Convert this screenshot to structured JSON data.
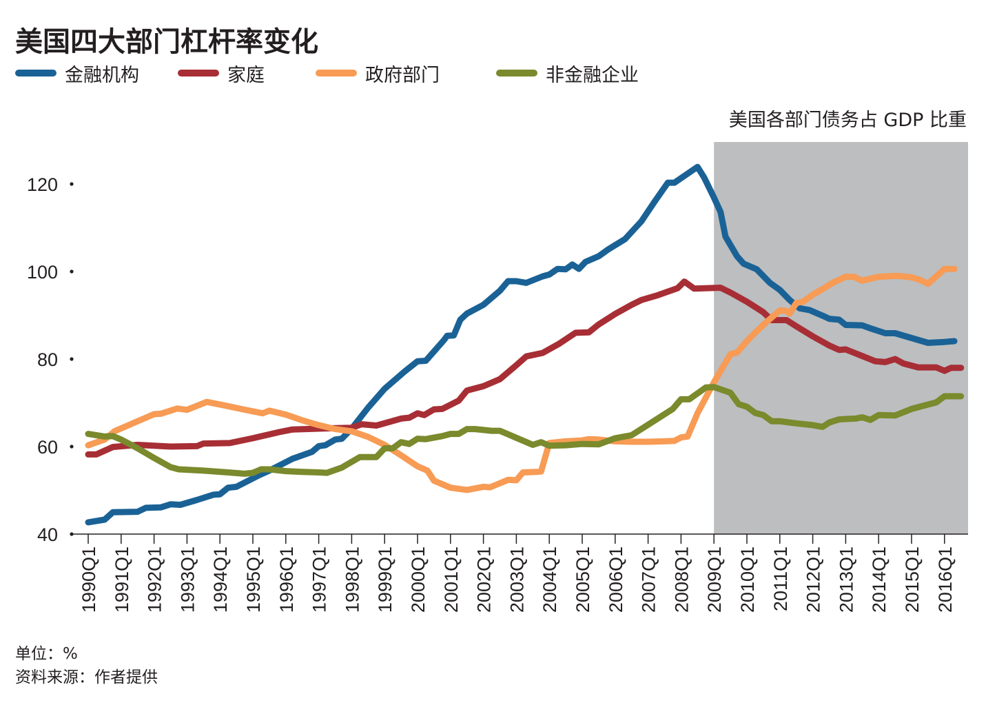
{
  "title": "美国四大部门杠杆率变化",
  "subtitle": "美国各部门债务占 GDP 比重",
  "unit_note": "单位：%",
  "source_note": "资料来源：作者提供",
  "colors": {
    "financial": "#1a6296",
    "household": "#a82e35",
    "government": "#f79b55",
    "nonfinancial": "#7a8a2c",
    "shade": "#bcbec0",
    "axis": "#231f20"
  },
  "chart_data": {
    "type": "line",
    "title": "美国四大部门杠杆率变化",
    "subtitle": "美国各部门债务占 GDP 比重",
    "xlabel": "",
    "ylabel": "单位：%",
    "x_range": [
      1990.0,
      2017.0
    ],
    "ylim": [
      40,
      130
    ],
    "yticks": [
      40,
      60,
      80,
      100,
      120
    ],
    "categories": [
      "1990Q1",
      "1991Q1",
      "1992Q1",
      "1993Q1",
      "1994Q1",
      "1995Q1",
      "1996Q1",
      "1997Q1",
      "1998Q1",
      "1999Q1",
      "2000Q1",
      "2001Q1",
      "2002Q1",
      "2003Q1",
      "2004Q1",
      "2005Q1",
      "2006Q1",
      "2007Q1",
      "2008Q1",
      "2009Q1",
      "2010Q1",
      "2011Q1",
      "2012Q1",
      "2013Q1",
      "2014Q1",
      "2015Q1",
      "2016Q1"
    ],
    "shaded_region": {
      "from": 2009.0,
      "to": 2017.0
    },
    "series": [
      {
        "name": "金融机构",
        "key": "financial",
        "points": [
          [
            1990.0,
            42.7
          ],
          [
            1990.5,
            43.3
          ],
          [
            1990.75,
            45.0
          ],
          [
            1991.5,
            45.1
          ],
          [
            1991.75,
            46.0
          ],
          [
            1992.2,
            46.1
          ],
          [
            1992.5,
            46.8
          ],
          [
            1992.8,
            46.7
          ],
          [
            1993.3,
            47.8
          ],
          [
            1993.8,
            49.0
          ],
          [
            1994.0,
            49.1
          ],
          [
            1994.25,
            50.6
          ],
          [
            1994.5,
            50.8
          ],
          [
            1995.2,
            53.5
          ],
          [
            1995.5,
            54.5
          ],
          [
            1996.2,
            57.2
          ],
          [
            1996.8,
            58.8
          ],
          [
            1997.0,
            60.1
          ],
          [
            1997.2,
            60.3
          ],
          [
            1997.5,
            61.6
          ],
          [
            1997.7,
            61.8
          ],
          [
            1998.0,
            64.1
          ],
          [
            1998.5,
            68.9
          ],
          [
            1999.0,
            73.2
          ],
          [
            1999.6,
            77.1
          ],
          [
            2000.0,
            79.5
          ],
          [
            2000.25,
            79.6
          ],
          [
            2000.8,
            84.3
          ],
          [
            2000.9,
            85.3
          ],
          [
            2001.1,
            85.4
          ],
          [
            2001.3,
            89.0
          ],
          [
            2001.5,
            90.4
          ],
          [
            2002.0,
            92.4
          ],
          [
            2002.5,
            95.6
          ],
          [
            2002.75,
            97.8
          ],
          [
            2003.0,
            97.8
          ],
          [
            2003.3,
            97.4
          ],
          [
            2003.8,
            98.9
          ],
          [
            2004.0,
            99.3
          ],
          [
            2004.25,
            100.6
          ],
          [
            2004.5,
            100.5
          ],
          [
            2004.7,
            101.6
          ],
          [
            2004.9,
            100.6
          ],
          [
            2005.1,
            102.2
          ],
          [
            2005.5,
            103.5
          ],
          [
            2005.8,
            105.1
          ],
          [
            2006.3,
            107.4
          ],
          [
            2006.8,
            111.5
          ],
          [
            2007.2,
            116.0
          ],
          [
            2007.6,
            120.3
          ],
          [
            2007.8,
            120.3
          ],
          [
            2008.5,
            123.9
          ],
          [
            2008.7,
            121.5
          ],
          [
            2009.0,
            116.9
          ],
          [
            2009.2,
            113.6
          ],
          [
            2009.35,
            108.0
          ],
          [
            2009.7,
            103.5
          ],
          [
            2009.9,
            101.8
          ],
          [
            2010.3,
            100.5
          ],
          [
            2010.7,
            97.4
          ],
          [
            2011.0,
            95.8
          ],
          [
            2011.3,
            93.5
          ],
          [
            2011.6,
            91.6
          ],
          [
            2011.9,
            91.2
          ],
          [
            2012.3,
            89.9
          ],
          [
            2012.5,
            89.2
          ],
          [
            2012.8,
            89.0
          ],
          [
            2013.0,
            87.8
          ],
          [
            2013.5,
            87.7
          ],
          [
            2013.8,
            86.9
          ],
          [
            2014.2,
            85.9
          ],
          [
            2014.5,
            85.9
          ],
          [
            2015.0,
            84.8
          ],
          [
            2015.5,
            83.7
          ],
          [
            2016.0,
            83.9
          ],
          [
            2016.3,
            84.1
          ]
        ]
      },
      {
        "name": "家庭",
        "key": "household",
        "points": [
          [
            1990.0,
            58.2
          ],
          [
            1990.25,
            58.2
          ],
          [
            1990.75,
            59.9
          ],
          [
            1991.5,
            60.4
          ],
          [
            1992.5,
            60.0
          ],
          [
            1993.3,
            60.1
          ],
          [
            1993.5,
            60.7
          ],
          [
            1994.3,
            60.8
          ],
          [
            1995.0,
            61.9
          ],
          [
            1995.8,
            63.3
          ],
          [
            1996.2,
            63.9
          ],
          [
            1997.0,
            64.1
          ],
          [
            1997.5,
            64.2
          ],
          [
            1998.0,
            64.3
          ],
          [
            1998.3,
            65.1
          ],
          [
            1998.75,
            64.8
          ],
          [
            1999.5,
            66.4
          ],
          [
            1999.75,
            66.6
          ],
          [
            2000.0,
            67.6
          ],
          [
            2000.2,
            67.2
          ],
          [
            2000.5,
            68.5
          ],
          [
            2000.75,
            68.6
          ],
          [
            2001.25,
            70.5
          ],
          [
            2001.5,
            72.8
          ],
          [
            2002.0,
            73.8
          ],
          [
            2002.5,
            75.4
          ],
          [
            2003.0,
            78.6
          ],
          [
            2003.3,
            80.6
          ],
          [
            2003.8,
            81.4
          ],
          [
            2004.3,
            83.5
          ],
          [
            2004.8,
            86.0
          ],
          [
            2005.2,
            86.1
          ],
          [
            2005.5,
            87.9
          ],
          [
            2006.0,
            90.3
          ],
          [
            2006.5,
            92.4
          ],
          [
            2006.8,
            93.5
          ],
          [
            2007.3,
            94.6
          ],
          [
            2007.9,
            96.2
          ],
          [
            2008.1,
            97.7
          ],
          [
            2008.4,
            96.1
          ],
          [
            2009.2,
            96.3
          ],
          [
            2009.5,
            95.2
          ],
          [
            2010.0,
            93.1
          ],
          [
            2010.5,
            90.7
          ],
          [
            2010.75,
            88.9
          ],
          [
            2011.2,
            88.9
          ],
          [
            2011.5,
            87.5
          ],
          [
            2012.0,
            85.2
          ],
          [
            2012.5,
            83.1
          ],
          [
            2012.8,
            82.1
          ],
          [
            2013.0,
            82.2
          ],
          [
            2013.5,
            80.7
          ],
          [
            2013.9,
            79.5
          ],
          [
            2014.2,
            79.3
          ],
          [
            2014.5,
            80.0
          ],
          [
            2014.75,
            79.0
          ],
          [
            2015.2,
            78.1
          ],
          [
            2015.5,
            78.1
          ],
          [
            2015.75,
            78.1
          ],
          [
            2016.0,
            77.3
          ],
          [
            2016.2,
            78.0
          ],
          [
            2016.5,
            78.0
          ]
        ]
      },
      {
        "name": "政府部门",
        "key": "government",
        "points": [
          [
            1990.0,
            60.3
          ],
          [
            1990.5,
            61.6
          ],
          [
            1990.8,
            63.5
          ],
          [
            1991.5,
            65.8
          ],
          [
            1992.0,
            67.4
          ],
          [
            1992.2,
            67.5
          ],
          [
            1992.7,
            68.7
          ],
          [
            1993.0,
            68.4
          ],
          [
            1993.6,
            70.2
          ],
          [
            1994.2,
            69.3
          ],
          [
            1994.7,
            68.5
          ],
          [
            1995.3,
            67.6
          ],
          [
            1995.5,
            68.2
          ],
          [
            1996.0,
            67.3
          ],
          [
            1996.5,
            66.0
          ],
          [
            1997.0,
            64.9
          ],
          [
            1997.5,
            64.0
          ],
          [
            1998.0,
            63.5
          ],
          [
            1998.5,
            62.2
          ],
          [
            1999.0,
            60.4
          ],
          [
            1999.5,
            58.0
          ],
          [
            2000.0,
            55.5
          ],
          [
            2000.3,
            54.5
          ],
          [
            2000.5,
            52.2
          ],
          [
            2001.0,
            50.6
          ],
          [
            2001.5,
            50.1
          ],
          [
            2002.0,
            50.8
          ],
          [
            2002.2,
            50.7
          ],
          [
            2002.75,
            52.4
          ],
          [
            2003.0,
            52.3
          ],
          [
            2003.2,
            54.1
          ],
          [
            2003.6,
            54.2
          ],
          [
            2003.75,
            54.3
          ],
          [
            2004.0,
            60.8
          ],
          [
            2004.5,
            61.2
          ],
          [
            2005.0,
            61.4
          ],
          [
            2005.2,
            61.7
          ],
          [
            2005.5,
            61.6
          ],
          [
            2006.0,
            61.2
          ],
          [
            2006.5,
            61.1
          ],
          [
            2007.0,
            61.1
          ],
          [
            2007.5,
            61.2
          ],
          [
            2007.8,
            61.3
          ],
          [
            2008.0,
            62.1
          ],
          [
            2008.2,
            62.3
          ],
          [
            2008.5,
            67.6
          ],
          [
            2009.0,
            74.7
          ],
          [
            2009.5,
            81.1
          ],
          [
            2009.7,
            81.5
          ],
          [
            2010.0,
            84.1
          ],
          [
            2010.3,
            86.4
          ],
          [
            2010.6,
            88.5
          ],
          [
            2011.0,
            91.1
          ],
          [
            2011.2,
            91.0
          ],
          [
            2011.3,
            90.4
          ],
          [
            2011.5,
            92.8
          ],
          [
            2011.7,
            93.1
          ],
          [
            2012.0,
            94.7
          ],
          [
            2012.3,
            96.0
          ],
          [
            2012.6,
            97.4
          ],
          [
            2013.0,
            98.8
          ],
          [
            2013.25,
            98.8
          ],
          [
            2013.5,
            97.9
          ],
          [
            2014.0,
            98.8
          ],
          [
            2014.5,
            99.0
          ],
          [
            2014.75,
            98.9
          ],
          [
            2015.0,
            98.7
          ],
          [
            2015.25,
            98.1
          ],
          [
            2015.5,
            97.2
          ],
          [
            2016.0,
            100.6
          ],
          [
            2016.3,
            100.6
          ]
        ]
      },
      {
        "name": "非金融企业",
        "key": "nonfinancial",
        "points": [
          [
            1990.0,
            62.9
          ],
          [
            1990.5,
            62.3
          ],
          [
            1990.75,
            62.4
          ],
          [
            1991.0,
            61.6
          ],
          [
            1991.5,
            59.6
          ],
          [
            1992.0,
            57.4
          ],
          [
            1992.5,
            55.3
          ],
          [
            1992.75,
            54.8
          ],
          [
            1993.5,
            54.5
          ],
          [
            1994.25,
            54.1
          ],
          [
            1994.75,
            53.8
          ],
          [
            1995.0,
            54.0
          ],
          [
            1995.25,
            54.8
          ],
          [
            1995.5,
            54.8
          ],
          [
            1996.0,
            54.4
          ],
          [
            1996.5,
            54.2
          ],
          [
            1997.0,
            54.1
          ],
          [
            1997.25,
            54.0
          ],
          [
            1997.7,
            55.2
          ],
          [
            1998.25,
            57.6
          ],
          [
            1998.75,
            57.6
          ],
          [
            1999.0,
            59.6
          ],
          [
            1999.25,
            59.6
          ],
          [
            1999.5,
            61.0
          ],
          [
            1999.75,
            60.6
          ],
          [
            2000.0,
            61.8
          ],
          [
            2000.25,
            61.7
          ],
          [
            2000.75,
            62.4
          ],
          [
            2001.0,
            62.9
          ],
          [
            2001.25,
            62.9
          ],
          [
            2001.5,
            64.0
          ],
          [
            2001.75,
            64.0
          ],
          [
            2002.25,
            63.6
          ],
          [
            2002.5,
            63.6
          ],
          [
            2003.0,
            62.0
          ],
          [
            2003.5,
            60.4
          ],
          [
            2003.75,
            61.0
          ],
          [
            2004.0,
            60.2
          ],
          [
            2004.5,
            60.3
          ],
          [
            2005.0,
            60.6
          ],
          [
            2005.5,
            60.5
          ],
          [
            2006.0,
            61.9
          ],
          [
            2006.5,
            62.6
          ],
          [
            2007.0,
            65.0
          ],
          [
            2007.75,
            68.6
          ],
          [
            2008.0,
            70.8
          ],
          [
            2008.25,
            70.8
          ],
          [
            2008.75,
            73.5
          ],
          [
            2009.0,
            73.6
          ],
          [
            2009.5,
            72.3
          ],
          [
            2009.75,
            69.7
          ],
          [
            2010.0,
            69.1
          ],
          [
            2010.25,
            67.7
          ],
          [
            2010.5,
            67.2
          ],
          [
            2010.75,
            65.8
          ],
          [
            2011.0,
            65.8
          ],
          [
            2011.5,
            65.3
          ],
          [
            2012.0,
            64.9
          ],
          [
            2012.3,
            64.5
          ],
          [
            2012.5,
            65.5
          ],
          [
            2012.8,
            66.2
          ],
          [
            2013.0,
            66.3
          ],
          [
            2013.3,
            66.4
          ],
          [
            2013.5,
            66.7
          ],
          [
            2013.75,
            66.1
          ],
          [
            2014.0,
            67.2
          ],
          [
            2014.5,
            67.1
          ],
          [
            2015.0,
            68.6
          ],
          [
            2015.5,
            69.6
          ],
          [
            2015.75,
            70.1
          ],
          [
            2016.0,
            71.5
          ],
          [
            2016.5,
            71.5
          ]
        ]
      }
    ]
  }
}
